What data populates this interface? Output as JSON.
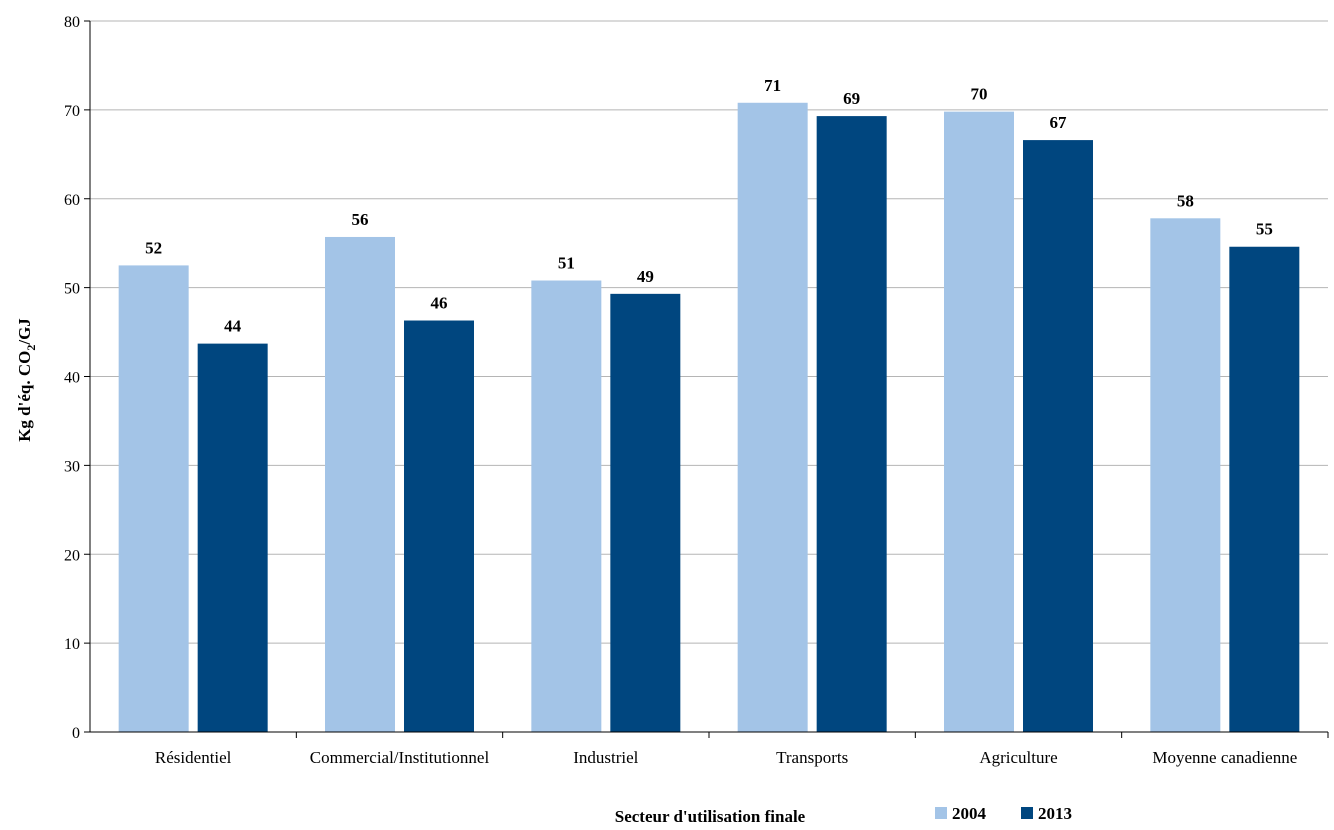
{
  "chart_data": {
    "type": "bar",
    "categories": [
      "Résidentiel",
      "Commercial/Institutionnel",
      "Industriel",
      "Transports",
      "Agriculture",
      "Moyenne canadienne"
    ],
    "series": [
      {
        "name": "2004",
        "color": "#a3c4e7",
        "values": [
          52.5,
          55.7,
          50.8,
          70.8,
          69.8,
          57.8
        ],
        "labels": [
          "52",
          "56",
          "51",
          "71",
          "70",
          "58"
        ]
      },
      {
        "name": "2013",
        "color": "#00467f",
        "values": [
          43.7,
          46.3,
          49.3,
          69.3,
          66.6,
          54.6
        ],
        "labels": [
          "44",
          "46",
          "49",
          "69",
          "67",
          "55"
        ]
      }
    ],
    "ylim": [
      0,
      80
    ],
    "yticks": [
      "0",
      "10",
      "20",
      "30",
      "40",
      "50",
      "60",
      "70",
      "80"
    ],
    "ylabel_main": "Kg d'éq. CO",
    "ylabel_sub": "2",
    "ylabel_tail": "/GJ",
    "xlabel": "Secteur d'utilisation finale",
    "grid": true,
    "legend_position": "bottom-right"
  }
}
